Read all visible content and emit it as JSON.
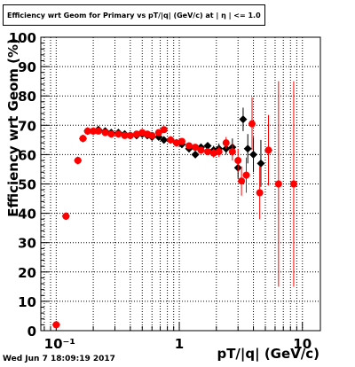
{
  "chart_data": {
    "type": "scatter",
    "title": "Efficiency wrt Geom for Primary vs pT/|q| (GeV/c) at | η | <= 1.0",
    "xlabel": "pT/|q| (GeV/c)",
    "ylabel": "Efficiency wrt Geom (%)",
    "x_scale": "log",
    "xlim": [
      0.075,
      14
    ],
    "ylim": [
      0,
      100
    ],
    "y_ticks": [
      0,
      10,
      20,
      30,
      40,
      50,
      60,
      70,
      80,
      90,
      100
    ],
    "y_tick_labels": [
      "0",
      "10",
      "20",
      "30",
      "40",
      "50",
      "60",
      "70",
      "80",
      "90",
      "100"
    ],
    "x_ticks": [
      0.1,
      1,
      10
    ],
    "x_tick_labels": [
      "10⁻¹",
      "1",
      "10"
    ],
    "grid": true,
    "series": [
      {
        "color": "#000000",
        "marker": "diamond",
        "points": [
          {
            "x": 0.1,
            "y": 2,
            "err": 0.5
          },
          {
            "x": 0.12,
            "y": 39,
            "err": 0.5
          },
          {
            "x": 0.15,
            "y": 58,
            "err": 0.5
          },
          {
            "x": 0.165,
            "y": 65.5,
            "err": 0.5
          },
          {
            "x": 0.18,
            "y": 68,
            "err": 0.5
          },
          {
            "x": 0.2,
            "y": 68,
            "err": 0.5
          },
          {
            "x": 0.22,
            "y": 68.5,
            "err": 0.5
          },
          {
            "x": 0.25,
            "y": 68,
            "err": 0.5
          },
          {
            "x": 0.28,
            "y": 67.5,
            "err": 0.5
          },
          {
            "x": 0.32,
            "y": 67.5,
            "err": 0.5
          },
          {
            "x": 0.36,
            "y": 67,
            "err": 0.5
          },
          {
            "x": 0.4,
            "y": 66.5,
            "err": 0.5
          },
          {
            "x": 0.45,
            "y": 66.5,
            "err": 0.5
          },
          {
            "x": 0.5,
            "y": 67,
            "err": 0.5
          },
          {
            "x": 0.55,
            "y": 66.5,
            "err": 0.5
          },
          {
            "x": 0.6,
            "y": 66,
            "err": 0.5
          },
          {
            "x": 0.68,
            "y": 66,
            "err": 0.6
          },
          {
            "x": 0.75,
            "y": 65,
            "err": 0.6
          },
          {
            "x": 0.85,
            "y": 65,
            "err": 0.6
          },
          {
            "x": 0.95,
            "y": 64,
            "err": 0.7
          },
          {
            "x": 1.05,
            "y": 63.5,
            "err": 0.8
          },
          {
            "x": 1.2,
            "y": 62,
            "err": 1
          },
          {
            "x": 1.35,
            "y": 60,
            "err": 1
          },
          {
            "x": 1.5,
            "y": 62.5,
            "err": 1
          },
          {
            "x": 1.7,
            "y": 63,
            "err": 1.2
          },
          {
            "x": 1.9,
            "y": 61.5,
            "err": 1.5
          },
          {
            "x": 2.1,
            "y": 62,
            "err": 1.8
          },
          {
            "x": 2.4,
            "y": 62,
            "err": 2
          },
          {
            "x": 2.7,
            "y": 62.5,
            "err": 3
          },
          {
            "x": 3.0,
            "y": 55.5,
            "err": 3.5
          },
          {
            "x": 3.3,
            "y": 72,
            "err": 4
          },
          {
            "x": 3.6,
            "y": 62,
            "err": 5
          },
          {
            "x": 4.0,
            "y": 60,
            "err": 6
          },
          {
            "x": 4.6,
            "y": 57,
            "err": 8
          },
          {
            "x": 5.3,
            "y": 61.5,
            "err": 9
          }
        ]
      },
      {
        "color": "#ff0000",
        "marker": "circle",
        "points": [
          {
            "x": 0.1,
            "y": 2,
            "err": 0.5
          },
          {
            "x": 0.12,
            "y": 39,
            "err": 0.5
          },
          {
            "x": 0.15,
            "y": 58,
            "err": 0.5
          },
          {
            "x": 0.165,
            "y": 65.5,
            "err": 0.5
          },
          {
            "x": 0.18,
            "y": 68,
            "err": 0.5
          },
          {
            "x": 0.2,
            "y": 68,
            "err": 0.5
          },
          {
            "x": 0.22,
            "y": 68,
            "err": 0.5
          },
          {
            "x": 0.25,
            "y": 67.5,
            "err": 0.5
          },
          {
            "x": 0.28,
            "y": 67,
            "err": 0.5
          },
          {
            "x": 0.32,
            "y": 67,
            "err": 0.5
          },
          {
            "x": 0.36,
            "y": 66.5,
            "err": 0.5
          },
          {
            "x": 0.4,
            "y": 66.5,
            "err": 0.5
          },
          {
            "x": 0.45,
            "y": 67,
            "err": 0.5
          },
          {
            "x": 0.5,
            "y": 67.5,
            "err": 0.5
          },
          {
            "x": 0.55,
            "y": 67,
            "err": 0.5
          },
          {
            "x": 0.6,
            "y": 66.5,
            "err": 0.5
          },
          {
            "x": 0.68,
            "y": 67.5,
            "err": 0.6
          },
          {
            "x": 0.75,
            "y": 68.5,
            "err": 0.6
          },
          {
            "x": 0.85,
            "y": 65,
            "err": 0.6
          },
          {
            "x": 0.95,
            "y": 64,
            "err": 0.7
          },
          {
            "x": 1.05,
            "y": 64.5,
            "err": 0.8
          },
          {
            "x": 1.2,
            "y": 63,
            "err": 1
          },
          {
            "x": 1.35,
            "y": 62.5,
            "err": 1
          },
          {
            "x": 1.5,
            "y": 61.5,
            "err": 1
          },
          {
            "x": 1.7,
            "y": 61,
            "err": 1.2
          },
          {
            "x": 1.9,
            "y": 60.5,
            "err": 1.5
          },
          {
            "x": 2.1,
            "y": 61,
            "err": 1.8
          },
          {
            "x": 2.4,
            "y": 64,
            "err": 2
          },
          {
            "x": 2.7,
            "y": 61,
            "err": 3
          },
          {
            "x": 3.0,
            "y": 58,
            "err": 4
          },
          {
            "x": 3.2,
            "y": 51,
            "err": 5
          },
          {
            "x": 3.5,
            "y": 53,
            "err": 6
          },
          {
            "x": 3.9,
            "y": 70.5,
            "err": 9
          },
          {
            "x": 4.5,
            "y": 47,
            "err": 9
          },
          {
            "x": 5.3,
            "y": 61.5,
            "err": 12
          },
          {
            "x": 6.4,
            "y": 50,
            "err": 35
          },
          {
            "x": 8.5,
            "y": 50,
            "err": 35
          }
        ]
      }
    ]
  },
  "footer": {
    "timestamp": "Wed Jun  7 18:09:19 2017"
  }
}
